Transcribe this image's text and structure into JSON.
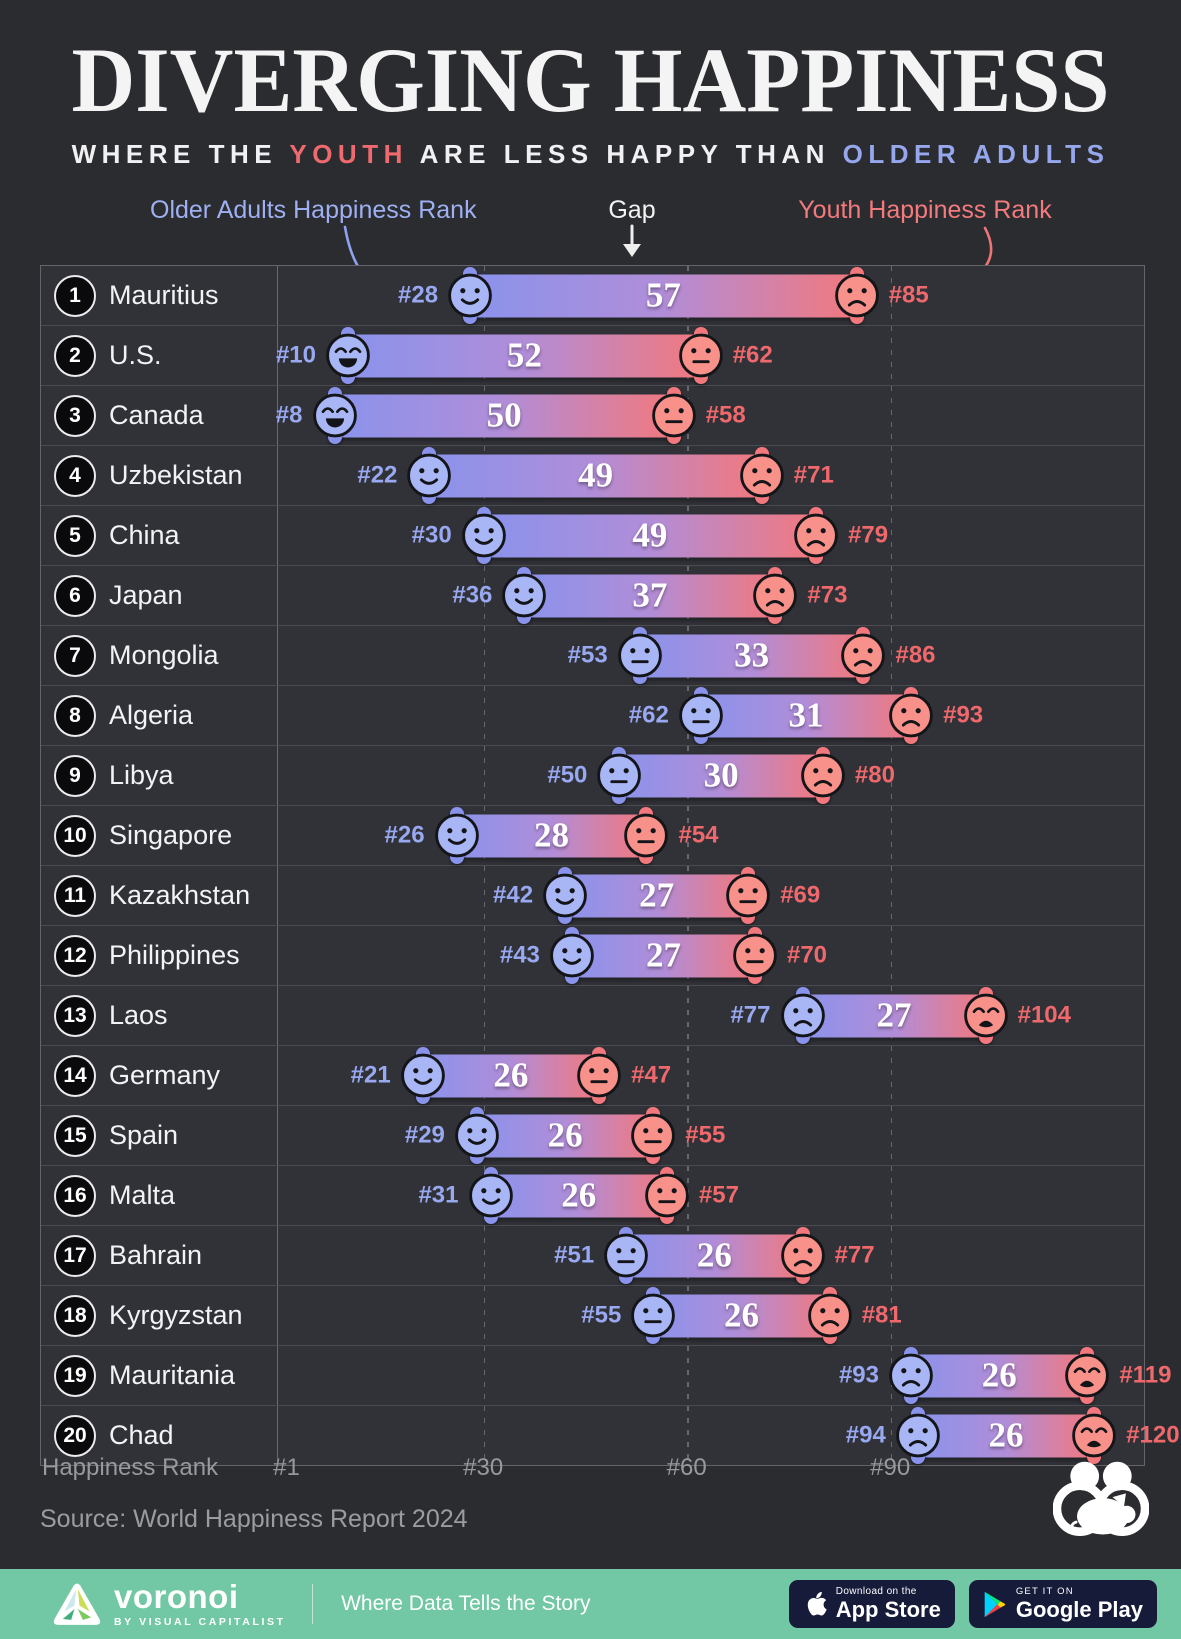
{
  "header": {
    "title": "DIVERGING HAPPINESS",
    "subtitle": {
      "s1": "WHERE THE ",
      "s2": "YOUTH",
      "s3": " ARE LESS HAPPY THAN ",
      "s4": "OLDER ADULTS"
    },
    "legend": {
      "older": "Older Adults Happiness Rank",
      "gap": "Gap",
      "youth": "Youth Happiness Rank"
    }
  },
  "chart_data": {
    "type": "bar",
    "title": "Diverging Happiness — gap between older adults' and youth happiness ranks",
    "xlabel": "Happiness Rank",
    "x_ticks": [
      {
        "label": "#1",
        "rank": 1
      },
      {
        "label": "#30",
        "rank": 30
      },
      {
        "label": "#60",
        "rank": 60
      },
      {
        "label": "#90",
        "rank": 90
      }
    ],
    "x_range": [
      1,
      128
    ],
    "grid": "dashed vertical gridlines at ranks 30, 60, 90",
    "rows": [
      {
        "pos": 1,
        "country": "Mauritius",
        "older_rank": 28,
        "youth_rank": 85,
        "gap": 57,
        "older_face": "smile",
        "youth_face": "frown"
      },
      {
        "pos": 2,
        "country": "U.S.",
        "older_rank": 10,
        "youth_rank": 62,
        "gap": 52,
        "older_face": "grin",
        "youth_face": "neutral"
      },
      {
        "pos": 3,
        "country": "Canada",
        "older_rank": 8,
        "youth_rank": 58,
        "gap": 50,
        "older_face": "grin",
        "youth_face": "neutral"
      },
      {
        "pos": 4,
        "country": "Uzbekistan",
        "older_rank": 22,
        "youth_rank": 71,
        "gap": 49,
        "older_face": "smile",
        "youth_face": "frown"
      },
      {
        "pos": 5,
        "country": "China",
        "older_rank": 30,
        "youth_rank": 79,
        "gap": 49,
        "older_face": "smile",
        "youth_face": "frown"
      },
      {
        "pos": 6,
        "country": "Japan",
        "older_rank": 36,
        "youth_rank": 73,
        "gap": 37,
        "older_face": "smile",
        "youth_face": "frown"
      },
      {
        "pos": 7,
        "country": "Mongolia",
        "older_rank": 53,
        "youth_rank": 86,
        "gap": 33,
        "older_face": "neutral",
        "youth_face": "frown"
      },
      {
        "pos": 8,
        "country": "Algeria",
        "older_rank": 62,
        "youth_rank": 93,
        "gap": 31,
        "older_face": "neutral",
        "youth_face": "frown"
      },
      {
        "pos": 9,
        "country": "Libya",
        "older_rank": 50,
        "youth_rank": 80,
        "gap": 30,
        "older_face": "neutral",
        "youth_face": "frown"
      },
      {
        "pos": 10,
        "country": "Singapore",
        "older_rank": 26,
        "youth_rank": 54,
        "gap": 28,
        "older_face": "smile",
        "youth_face": "neutral"
      },
      {
        "pos": 11,
        "country": "Kazakhstan",
        "older_rank": 42,
        "youth_rank": 69,
        "gap": 27,
        "older_face": "smile",
        "youth_face": "neutral"
      },
      {
        "pos": 12,
        "country": "Philippines",
        "older_rank": 43,
        "youth_rank": 70,
        "gap": 27,
        "older_face": "smile",
        "youth_face": "neutral"
      },
      {
        "pos": 13,
        "country": "Laos",
        "older_rank": 77,
        "youth_rank": 104,
        "gap": 27,
        "older_face": "frown",
        "youth_face": "weary"
      },
      {
        "pos": 14,
        "country": "Germany",
        "older_rank": 21,
        "youth_rank": 47,
        "gap": 26,
        "older_face": "smile",
        "youth_face": "neutral"
      },
      {
        "pos": 15,
        "country": "Spain",
        "older_rank": 29,
        "youth_rank": 55,
        "gap": 26,
        "older_face": "smile",
        "youth_face": "neutral"
      },
      {
        "pos": 16,
        "country": "Malta",
        "older_rank": 31,
        "youth_rank": 57,
        "gap": 26,
        "older_face": "smile",
        "youth_face": "neutral"
      },
      {
        "pos": 17,
        "country": "Bahrain",
        "older_rank": 51,
        "youth_rank": 77,
        "gap": 26,
        "older_face": "neutral",
        "youth_face": "frown"
      },
      {
        "pos": 18,
        "country": "Kyrgyzstan",
        "older_rank": 55,
        "youth_rank": 81,
        "gap": 26,
        "older_face": "neutral",
        "youth_face": "frown"
      },
      {
        "pos": 19,
        "country": "Mauritania",
        "older_rank": 93,
        "youth_rank": 119,
        "gap": 26,
        "older_face": "frown",
        "youth_face": "weary"
      },
      {
        "pos": 20,
        "country": "Chad",
        "older_rank": 94,
        "youth_rank": 120,
        "gap": 26,
        "older_face": "frown",
        "youth_face": "weary"
      }
    ]
  },
  "source": "Source: World Happiness Report 2024",
  "footer": {
    "brand": "voronoi",
    "brand_sub": "BY VISUAL CAPITALIST",
    "tagline": "Where Data Tells the Story",
    "appstore": {
      "line1": "Download on the",
      "line2": "App Store"
    },
    "googleplay": {
      "line1": "GET IT ON",
      "line2": "Google Play"
    }
  },
  "colors": {
    "background": "#2b2c30",
    "row_bg": "#313238",
    "bar_blue": "#8a93ec",
    "bar_mid": "#b18dd8",
    "bar_red": "#f2787d",
    "face_blue": "#a9b6f5",
    "face_red": "#f9918b",
    "face_stroke": "#141518",
    "label_blue": "#98a8f1",
    "label_red": "#ef686c",
    "legend_blue": "#9fb0f2",
    "legend_red": "#f37a7d",
    "footer_green": "#72c8a4",
    "axis_text": "#98999e"
  }
}
